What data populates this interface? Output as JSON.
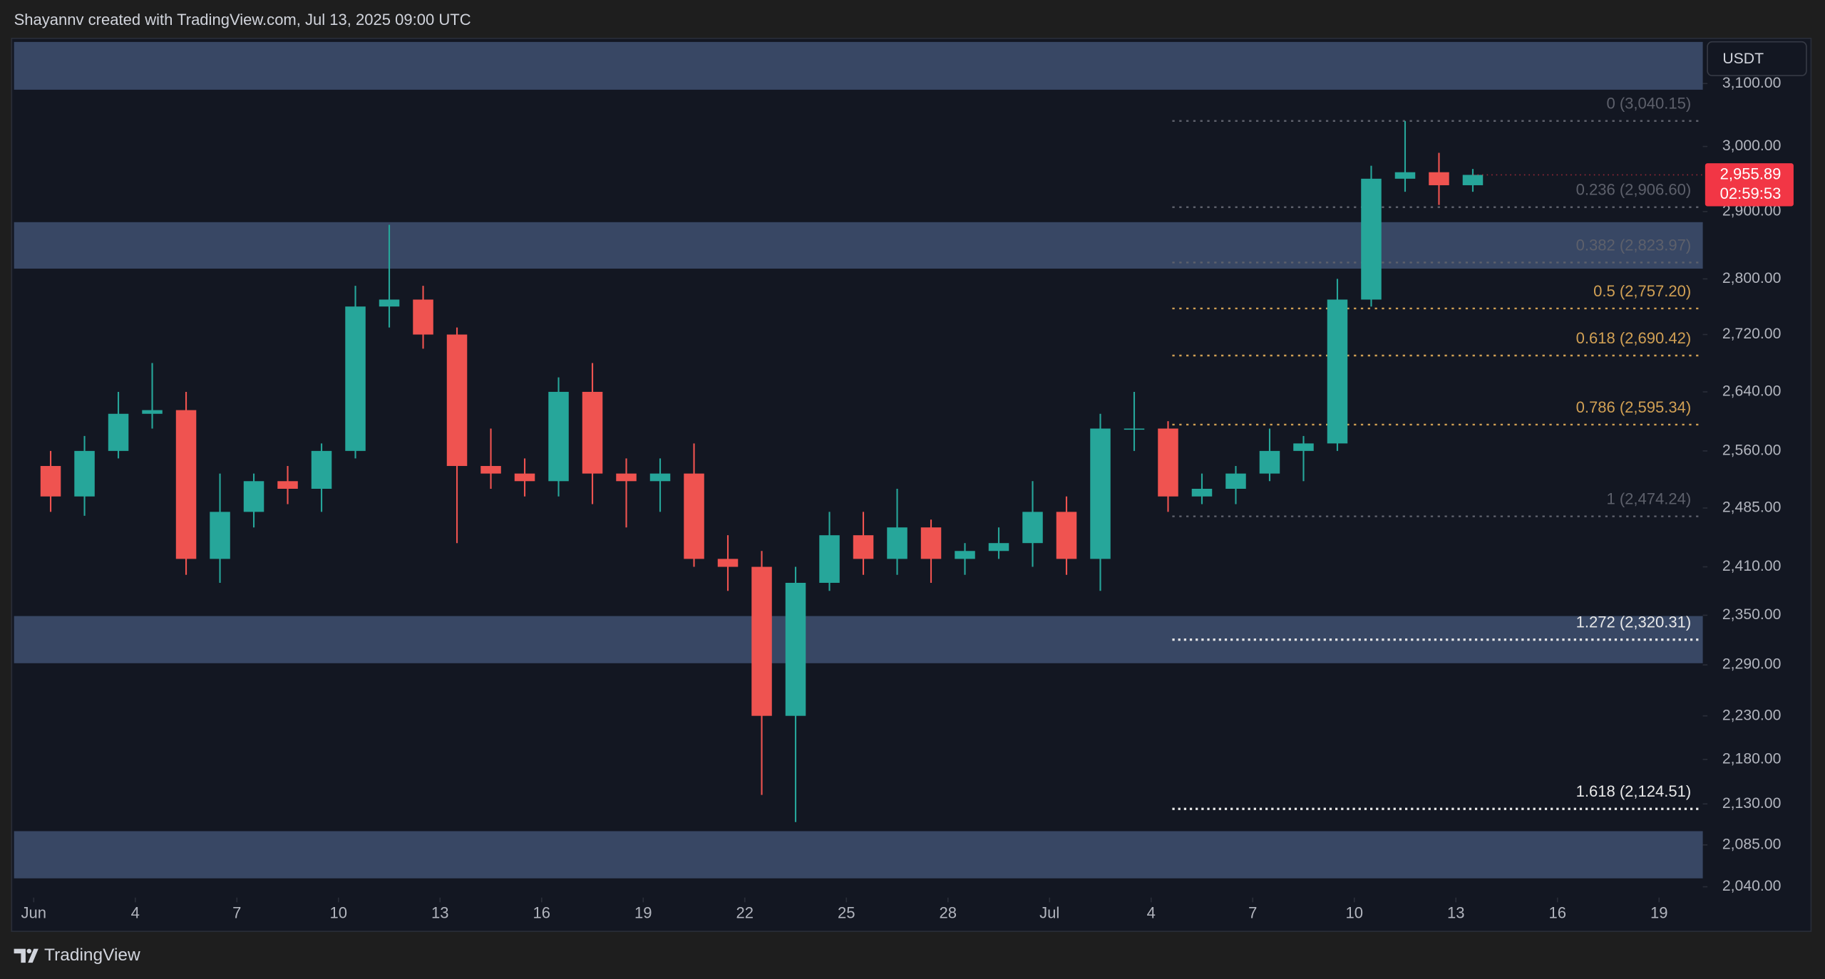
{
  "chart_data": {
    "type": "candlestick",
    "title": "Shayannv created with TradingView.com, Jul 13, 2025 09:00 UTC",
    "currency": "USDT",
    "brand": "TradingView",
    "x": [
      "2025-06-01",
      "2025-06-02",
      "2025-06-03",
      "2025-06-04",
      "2025-06-05",
      "2025-06-06",
      "2025-06-07",
      "2025-06-08",
      "2025-06-09",
      "2025-06-10",
      "2025-06-11",
      "2025-06-12",
      "2025-06-13",
      "2025-06-14",
      "2025-06-15",
      "2025-06-16",
      "2025-06-17",
      "2025-06-18",
      "2025-06-19",
      "2025-06-20",
      "2025-06-21",
      "2025-06-22",
      "2025-06-23",
      "2025-06-24",
      "2025-06-25",
      "2025-06-26",
      "2025-06-27",
      "2025-06-28",
      "2025-06-29",
      "2025-06-30",
      "2025-07-01",
      "2025-07-02",
      "2025-07-03",
      "2025-07-04",
      "2025-07-05",
      "2025-07-06",
      "2025-07-07",
      "2025-07-08",
      "2025-07-09",
      "2025-07-10",
      "2025-07-11",
      "2025-07-12",
      "2025-07-13"
    ],
    "open": [
      2540,
      2500,
      2560,
      2610,
      2615,
      2420,
      2480,
      2520,
      2510,
      2560,
      2760,
      2770,
      2720,
      2540,
      2530,
      2520,
      2640,
      2530,
      2520,
      2530,
      2420,
      2410,
      2230,
      2390,
      2450,
      2420,
      2460,
      2420,
      2430,
      2440,
      2480,
      2420,
      2590,
      2590,
      2500,
      2510,
      2530,
      2560,
      2570,
      2770,
      2950,
      2960,
      2940
    ],
    "high": [
      2560,
      2580,
      2640,
      2680,
      2640,
      2530,
      2530,
      2540,
      2570,
      2790,
      2880,
      2790,
      2730,
      2590,
      2550,
      2660,
      2680,
      2550,
      2550,
      2570,
      2450,
      2430,
      2410,
      2480,
      2480,
      2510,
      2470,
      2440,
      2460,
      2520,
      2500,
      2610,
      2640,
      2600,
      2530,
      2540,
      2590,
      2580,
      2800,
      2970,
      3040,
      2990,
      2965
    ],
    "low": [
      2480,
      2475,
      2550,
      2590,
      2400,
      2390,
      2460,
      2490,
      2480,
      2550,
      2730,
      2700,
      2440,
      2510,
      2500,
      2500,
      2490,
      2460,
      2480,
      2410,
      2380,
      2140,
      2110,
      2380,
      2400,
      2400,
      2390,
      2400,
      2420,
      2410,
      2400,
      2380,
      2560,
      2480,
      2490,
      2490,
      2520,
      2520,
      2560,
      2760,
      2930,
      2910,
      2930
    ],
    "close": [
      2500,
      2560,
      2610,
      2615,
      2420,
      2480,
      2520,
      2510,
      2560,
      2760,
      2770,
      2720,
      2540,
      2530,
      2520,
      2640,
      2530,
      2520,
      2530,
      2420,
      2410,
      2230,
      2390,
      2450,
      2420,
      2460,
      2420,
      2430,
      2440,
      2480,
      2420,
      2590,
      2590,
      2500,
      2510,
      2530,
      2560,
      2570,
      2770,
      2950,
      2960,
      2940,
      2955.89
    ],
    "up_color": "#26a69a",
    "down_color": "#ef5350",
    "xlim": [
      "2025-05-31T10:00",
      "2025-07-20T07:00"
    ],
    "xticks": [
      {
        "value": "2025-06-01",
        "label": "Jun"
      },
      {
        "value": "2025-06-04",
        "label": "4"
      },
      {
        "value": "2025-06-07",
        "label": "7"
      },
      {
        "value": "2025-06-10",
        "label": "10"
      },
      {
        "value": "2025-06-13",
        "label": "13"
      },
      {
        "value": "2025-06-16",
        "label": "16"
      },
      {
        "value": "2025-06-19",
        "label": "19"
      },
      {
        "value": "2025-06-22",
        "label": "22"
      },
      {
        "value": "2025-06-25",
        "label": "25"
      },
      {
        "value": "2025-06-28",
        "label": "28"
      },
      {
        "value": "2025-07-01",
        "label": "Jul"
      },
      {
        "value": "2025-07-04",
        "label": "4"
      },
      {
        "value": "2025-07-07",
        "label": "7"
      },
      {
        "value": "2025-07-10",
        "label": "10"
      },
      {
        "value": "2025-07-13",
        "label": "13"
      },
      {
        "value": "2025-07-16",
        "label": "16"
      },
      {
        "value": "2025-07-19",
        "label": "19"
      }
    ],
    "ylim": [
      2031,
      3168
    ],
    "log_scale": true,
    "yticks": [
      {
        "value": 3100,
        "label": "3,100.00"
      },
      {
        "value": 3000,
        "label": "3,000.00"
      },
      {
        "value": 2900,
        "label": "2,900.00"
      },
      {
        "value": 2800,
        "label": "2,800.00"
      },
      {
        "value": 2720,
        "label": "2,720.00"
      },
      {
        "value": 2640,
        "label": "2,640.00"
      },
      {
        "value": 2560,
        "label": "2,560.00"
      },
      {
        "value": 2485,
        "label": "2,485.00"
      },
      {
        "value": 2410,
        "label": "2,410.00"
      },
      {
        "value": 2350,
        "label": "2,350.00"
      },
      {
        "value": 2290,
        "label": "2,290.00"
      },
      {
        "value": 2230,
        "label": "2,230.00"
      },
      {
        "value": 2180,
        "label": "2,180.00"
      },
      {
        "value": 2130,
        "label": "2,130.00"
      },
      {
        "value": 2085,
        "label": "2,085.00"
      },
      {
        "value": 2040,
        "label": "2,040.00"
      }
    ],
    "zones": [
      [
        3090,
        3168
      ],
      [
        2815,
        2884
      ],
      [
        2292,
        2349
      ],
      [
        2049,
        2100
      ]
    ],
    "zone_color": "#3a4a68",
    "fib_start": "2025-07-04T15:00",
    "fib_levels": [
      {
        "label": "0 (3,040.15)",
        "value": 3040.15,
        "color": "#5d606b"
      },
      {
        "label": "0.236 (2,906.60)",
        "value": 2906.6,
        "color": "#5d606b"
      },
      {
        "label": "0.382 (2,823.97)",
        "value": 2823.97,
        "color": "#5d606b"
      },
      {
        "label": "0.5 (2,757.20)",
        "value": 2757.2,
        "color": "#d1a054"
      },
      {
        "label": "0.618 (2,690.42)",
        "value": 2690.42,
        "color": "#d1a054"
      },
      {
        "label": "0.786 (2,595.34)",
        "value": 2595.34,
        "color": "#d1a054"
      },
      {
        "label": "1 (2,474.24)",
        "value": 2474.24,
        "color": "#5d606b"
      },
      {
        "label": "1.272 (2,320.31)",
        "value": 2320.31,
        "color": "#e8e8e8"
      },
      {
        "label": "1.618 (2,124.51)",
        "value": 2124.51,
        "color": "#e8e8e8"
      }
    ],
    "last_price": {
      "value": 2955.89,
      "label": "2,955.89",
      "countdown": "02:59:53",
      "color": "#f23645"
    }
  }
}
